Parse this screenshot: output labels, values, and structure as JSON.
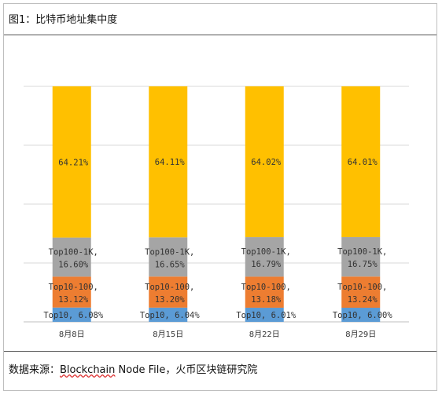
{
  "header": {
    "title": "图1：比特币地址集中度"
  },
  "footer": {
    "source_prefix": "数据来源：",
    "source_term": "Blockchain",
    "source_suffix": " Node File，火币区块链研究院"
  },
  "chart_data": {
    "type": "bar",
    "stacked": true,
    "normalized_percent": true,
    "categories": [
      "8月8日",
      "8月15日",
      "8月22日",
      "8月29日"
    ],
    "series": [
      {
        "name": "Top10",
        "color": "#5b9bd5",
        "values": [
          6.08,
          6.04,
          6.01,
          6.0
        ]
      },
      {
        "name": "Top10-100",
        "color": "#ed7d31",
        "values": [
          13.12,
          13.2,
          13.18,
          13.24
        ]
      },
      {
        "name": "Top100-1K",
        "color": "#a5a5a5",
        "values": [
          16.6,
          16.65,
          16.79,
          16.75
        ]
      },
      {
        "name": "",
        "color": "#ffc000",
        "values": [
          64.21,
          64.11,
          64.02,
          64.01
        ]
      }
    ],
    "data_labels": [
      [
        "Top10, 6.08%",
        "Top10, 6.04%",
        "Top10, 6.01%",
        "Top10, 6.00%"
      ],
      [
        [
          "Top10-100,",
          "13.12%"
        ],
        [
          "Top10-100,",
          "13.20%"
        ],
        [
          "Top10-100,",
          "13.18%"
        ],
        [
          "Top10-100,",
          "13.24%"
        ]
      ],
      [
        [
          "Top100-1K,",
          "16.60%"
        ],
        [
          "Top100-1K,",
          "16.65%"
        ],
        [
          "Top100-1K,",
          "16.79%"
        ],
        [
          "Top100-1K,",
          "16.75%"
        ]
      ],
      [
        "64.21%",
        "64.11%",
        "64.02%",
        "64.01%"
      ]
    ],
    "ylim": [
      0,
      100
    ],
    "gridlines": [
      0,
      25,
      50,
      75,
      100
    ],
    "legend": "none"
  }
}
